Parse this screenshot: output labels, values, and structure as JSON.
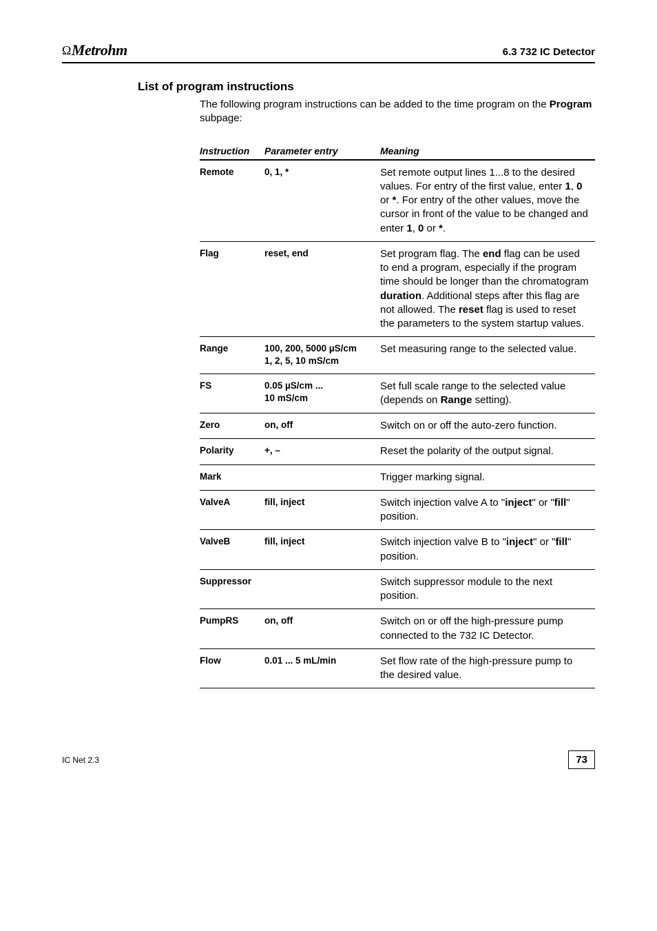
{
  "header": {
    "logo_text": "Metrohm",
    "section_ref": "6.3  732 IC Detector"
  },
  "heading": "List of program instructions",
  "intro_pre": "The following program instructions can be added to the time program on the ",
  "intro_bold": "Program",
  "intro_post": " subpage:",
  "table": {
    "head": {
      "c1": "Instruction",
      "c2": "Parameter entry",
      "c3": "Meaning"
    },
    "rows": [
      {
        "instr": "Remote",
        "param": "0, 1, *",
        "meaning_parts": [
          {
            "t": "Set remote output lines 1...8 to the desired values. For entry of the first value, enter "
          },
          {
            "t": "1",
            "b": true
          },
          {
            "t": ", "
          },
          {
            "t": "0",
            "b": true
          },
          {
            "t": " or "
          },
          {
            "t": "*",
            "b": true
          },
          {
            "t": ". For entry of the other values, move the cursor in front of the value to be changed and enter "
          },
          {
            "t": "1",
            "b": true
          },
          {
            "t": ", "
          },
          {
            "t": "0",
            "b": true
          },
          {
            "t": " or "
          },
          {
            "t": "*",
            "b": true
          },
          {
            "t": "."
          }
        ]
      },
      {
        "instr": "Flag",
        "param": "reset, end",
        "meaning_parts": [
          {
            "t": "Set program flag. The "
          },
          {
            "t": "end",
            "b": true
          },
          {
            "t": " flag can be used to end a program, especially if the program time should be longer than the chromatogram "
          },
          {
            "t": "duration",
            "b": true
          },
          {
            "t": ". Additional steps after this flag are not allowed. The "
          },
          {
            "t": "reset",
            "b": true
          },
          {
            "t": " flag is used to reset the parameters to the system startup values."
          }
        ]
      },
      {
        "instr": "Range",
        "param": "100, 200, 5000 µS/cm\n1, 2, 5, 10 mS/cm",
        "meaning_parts": [
          {
            "t": "Set measuring range to the selected value."
          }
        ]
      },
      {
        "instr": "FS",
        "param": "0.05 µS/cm ...\n10 mS/cm",
        "meaning_parts": [
          {
            "t": "Set full scale range to the selected value (depends on "
          },
          {
            "t": "Range",
            "b": true
          },
          {
            "t": " setting)."
          }
        ]
      },
      {
        "instr": "Zero",
        "param": "on, off",
        "meaning_parts": [
          {
            "t": "Switch on or off the auto-zero function."
          }
        ]
      },
      {
        "instr": "Polarity",
        "param": "+, –",
        "meaning_parts": [
          {
            "t": "Reset the polarity of the output signal."
          }
        ]
      },
      {
        "instr": "Mark",
        "param": "",
        "meaning_parts": [
          {
            "t": "Trigger marking signal."
          }
        ]
      },
      {
        "instr": "ValveA",
        "param": "fill, inject",
        "meaning_parts": [
          {
            "t": "Switch injection valve A to \""
          },
          {
            "t": "inject",
            "b": true
          },
          {
            "t": "\" or \""
          },
          {
            "t": "fill",
            "b": true
          },
          {
            "t": "\" position."
          }
        ]
      },
      {
        "instr": "ValveB",
        "param": "fill, inject",
        "meaning_parts": [
          {
            "t": "Switch injection valve B to \""
          },
          {
            "t": "inject",
            "b": true
          },
          {
            "t": "\" or \""
          },
          {
            "t": "fill",
            "b": true
          },
          {
            "t": "\" position."
          }
        ]
      },
      {
        "instr": "Suppressor",
        "param": "",
        "meaning_parts": [
          {
            "t": "Switch suppressor module to the next position."
          }
        ]
      },
      {
        "instr": "PumpRS",
        "param": "on, off",
        "meaning_parts": [
          {
            "t": "Switch on or off the high-pressure pump connected to the 732 IC Detector."
          }
        ]
      },
      {
        "instr": "Flow",
        "param": "0.01 ... 5 mL/min",
        "meaning_parts": [
          {
            "t": "Set flow rate of the high-pressure pump to the desired value."
          }
        ]
      }
    ]
  },
  "footer": {
    "left": "IC Net 2.3",
    "page": "73"
  }
}
